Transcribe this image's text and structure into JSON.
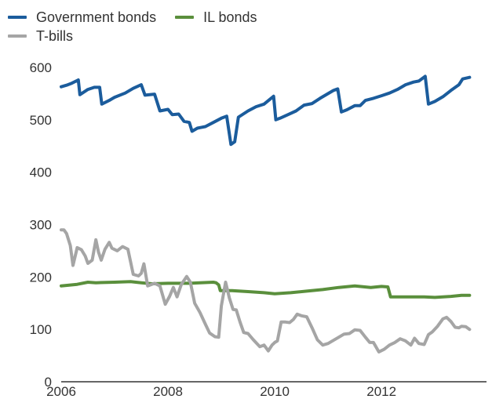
{
  "chart_data": {
    "type": "line",
    "title": "",
    "xlabel": "",
    "ylabel": "",
    "ylim": [
      0,
      600
    ],
    "xlim": [
      2006.0,
      2013.85
    ],
    "yticks": [
      0,
      100,
      200,
      300,
      400,
      500,
      600
    ],
    "xticks": [
      2006,
      2008,
      2010,
      2012
    ],
    "grid": false,
    "legend_position": "top-left",
    "series": [
      {
        "name": "Government bonds",
        "color": "#1b5c9c",
        "points": [
          [
            2006.0,
            563
          ],
          [
            2006.1,
            566
          ],
          [
            2006.2,
            570
          ],
          [
            2006.32,
            576
          ],
          [
            2006.35,
            548
          ],
          [
            2006.5,
            558
          ],
          [
            2006.62,
            562
          ],
          [
            2006.72,
            562
          ],
          [
            2006.76,
            530
          ],
          [
            2006.9,
            537
          ],
          [
            2007.0,
            543
          ],
          [
            2007.2,
            551
          ],
          [
            2007.35,
            560
          ],
          [
            2007.5,
            567
          ],
          [
            2007.57,
            547
          ],
          [
            2007.75,
            549
          ],
          [
            2007.85,
            517
          ],
          [
            2008.0,
            520
          ],
          [
            2008.08,
            510
          ],
          [
            2008.2,
            511
          ],
          [
            2008.3,
            497
          ],
          [
            2008.4,
            495
          ],
          [
            2008.45,
            478
          ],
          [
            2008.55,
            484
          ],
          [
            2008.7,
            487
          ],
          [
            2008.85,
            495
          ],
          [
            2009.0,
            503
          ],
          [
            2009.1,
            507
          ],
          [
            2009.18,
            453
          ],
          [
            2009.25,
            458
          ],
          [
            2009.32,
            505
          ],
          [
            2009.5,
            517
          ],
          [
            2009.65,
            525
          ],
          [
            2009.8,
            530
          ],
          [
            2009.98,
            545
          ],
          [
            2010.02,
            500
          ],
          [
            2010.1,
            503
          ],
          [
            2010.25,
            510
          ],
          [
            2010.4,
            517
          ],
          [
            2010.55,
            528
          ],
          [
            2010.7,
            531
          ],
          [
            2010.85,
            541
          ],
          [
            2011.0,
            550
          ],
          [
            2011.1,
            556
          ],
          [
            2011.18,
            559
          ],
          [
            2011.25,
            515
          ],
          [
            2011.35,
            519
          ],
          [
            2011.5,
            527
          ],
          [
            2011.6,
            527
          ],
          [
            2011.7,
            537
          ],
          [
            2011.85,
            541
          ],
          [
            2012.0,
            546
          ],
          [
            2012.15,
            551
          ],
          [
            2012.3,
            558
          ],
          [
            2012.45,
            567
          ],
          [
            2012.6,
            572
          ],
          [
            2012.7,
            574
          ],
          [
            2012.82,
            583
          ],
          [
            2012.88,
            530
          ],
          [
            2013.0,
            535
          ],
          [
            2013.15,
            544
          ],
          [
            2013.3,
            556
          ],
          [
            2013.45,
            567
          ],
          [
            2013.52,
            578
          ],
          [
            2013.65,
            581
          ]
        ]
      },
      {
        "name": "IL bonds",
        "color": "#5a8f3c",
        "points": [
          [
            2006.0,
            183
          ],
          [
            2006.3,
            186
          ],
          [
            2006.5,
            190
          ],
          [
            2006.65,
            189
          ],
          [
            2007.0,
            190
          ],
          [
            2007.3,
            191
          ],
          [
            2007.5,
            189
          ],
          [
            2007.7,
            187
          ],
          [
            2008.0,
            188
          ],
          [
            2008.4,
            188
          ],
          [
            2008.6,
            189
          ],
          [
            2008.85,
            190
          ],
          [
            2008.9,
            189
          ],
          [
            2008.95,
            185
          ],
          [
            2008.98,
            174
          ],
          [
            2009.2,
            174
          ],
          [
            2009.5,
            172
          ],
          [
            2009.8,
            170
          ],
          [
            2010.0,
            168
          ],
          [
            2010.3,
            170
          ],
          [
            2010.6,
            173
          ],
          [
            2010.9,
            176
          ],
          [
            2011.2,
            180
          ],
          [
            2011.5,
            183
          ],
          [
            2011.8,
            180
          ],
          [
            2012.0,
            182
          ],
          [
            2012.12,
            181
          ],
          [
            2012.17,
            162
          ],
          [
            2012.5,
            162
          ],
          [
            2012.8,
            162
          ],
          [
            2013.0,
            161
          ],
          [
            2013.3,
            163
          ],
          [
            2013.5,
            165
          ],
          [
            2013.65,
            165
          ]
        ]
      },
      {
        "name": "T-bills",
        "color": "#a5a5a5",
        "points": [
          [
            2006.0,
            290
          ],
          [
            2006.05,
            290
          ],
          [
            2006.1,
            283
          ],
          [
            2006.17,
            260
          ],
          [
            2006.22,
            222
          ],
          [
            2006.3,
            256
          ],
          [
            2006.38,
            252
          ],
          [
            2006.45,
            240
          ],
          [
            2006.5,
            226
          ],
          [
            2006.58,
            232
          ],
          [
            2006.65,
            271
          ],
          [
            2006.7,
            247
          ],
          [
            2006.75,
            232
          ],
          [
            2006.82,
            253
          ],
          [
            2006.9,
            266
          ],
          [
            2006.95,
            255
          ],
          [
            2007.05,
            250
          ],
          [
            2007.15,
            258
          ],
          [
            2007.25,
            253
          ],
          [
            2007.35,
            205
          ],
          [
            2007.45,
            202
          ],
          [
            2007.5,
            207
          ],
          [
            2007.55,
            225
          ],
          [
            2007.62,
            183
          ],
          [
            2007.75,
            188
          ],
          [
            2007.85,
            183
          ],
          [
            2007.95,
            148
          ],
          [
            2008.03,
            163
          ],
          [
            2008.1,
            180
          ],
          [
            2008.17,
            162
          ],
          [
            2008.25,
            186
          ],
          [
            2008.35,
            201
          ],
          [
            2008.42,
            190
          ],
          [
            2008.5,
            150
          ],
          [
            2008.6,
            132
          ],
          [
            2008.7,
            110
          ],
          [
            2008.78,
            93
          ],
          [
            2008.88,
            86
          ],
          [
            2008.95,
            85
          ],
          [
            2009.0,
            145
          ],
          [
            2009.08,
            190
          ],
          [
            2009.15,
            160
          ],
          [
            2009.22,
            138
          ],
          [
            2009.28,
            137
          ],
          [
            2009.35,
            114
          ],
          [
            2009.42,
            94
          ],
          [
            2009.5,
            92
          ],
          [
            2009.6,
            80
          ],
          [
            2009.72,
            67
          ],
          [
            2009.8,
            70
          ],
          [
            2009.88,
            59
          ],
          [
            2009.95,
            70
          ],
          [
            2010.0,
            75
          ],
          [
            2010.05,
            78
          ],
          [
            2010.12,
            114
          ],
          [
            2010.2,
            114
          ],
          [
            2010.28,
            113
          ],
          [
            2010.35,
            119
          ],
          [
            2010.42,
            129
          ],
          [
            2010.5,
            126
          ],
          [
            2010.6,
            124
          ],
          [
            2010.7,
            103
          ],
          [
            2010.8,
            80
          ],
          [
            2010.9,
            70
          ],
          [
            2011.0,
            73
          ],
          [
            2011.1,
            79
          ],
          [
            2011.2,
            85
          ],
          [
            2011.3,
            91
          ],
          [
            2011.4,
            92
          ],
          [
            2011.5,
            99
          ],
          [
            2011.6,
            98
          ],
          [
            2011.7,
            85
          ],
          [
            2011.78,
            75
          ],
          [
            2011.85,
            75
          ],
          [
            2011.95,
            57
          ],
          [
            2012.05,
            62
          ],
          [
            2012.15,
            70
          ],
          [
            2012.25,
            75
          ],
          [
            2012.35,
            82
          ],
          [
            2012.45,
            78
          ],
          [
            2012.55,
            70
          ],
          [
            2012.62,
            83
          ],
          [
            2012.7,
            73
          ],
          [
            2012.8,
            71
          ],
          [
            2012.88,
            90
          ],
          [
            2012.95,
            95
          ],
          [
            2013.05,
            106
          ],
          [
            2013.15,
            120
          ],
          [
            2013.22,
            123
          ],
          [
            2013.3,
            115
          ],
          [
            2013.38,
            104
          ],
          [
            2013.45,
            103
          ],
          [
            2013.5,
            106
          ],
          [
            2013.58,
            105
          ],
          [
            2013.65,
            100
          ]
        ]
      }
    ]
  }
}
